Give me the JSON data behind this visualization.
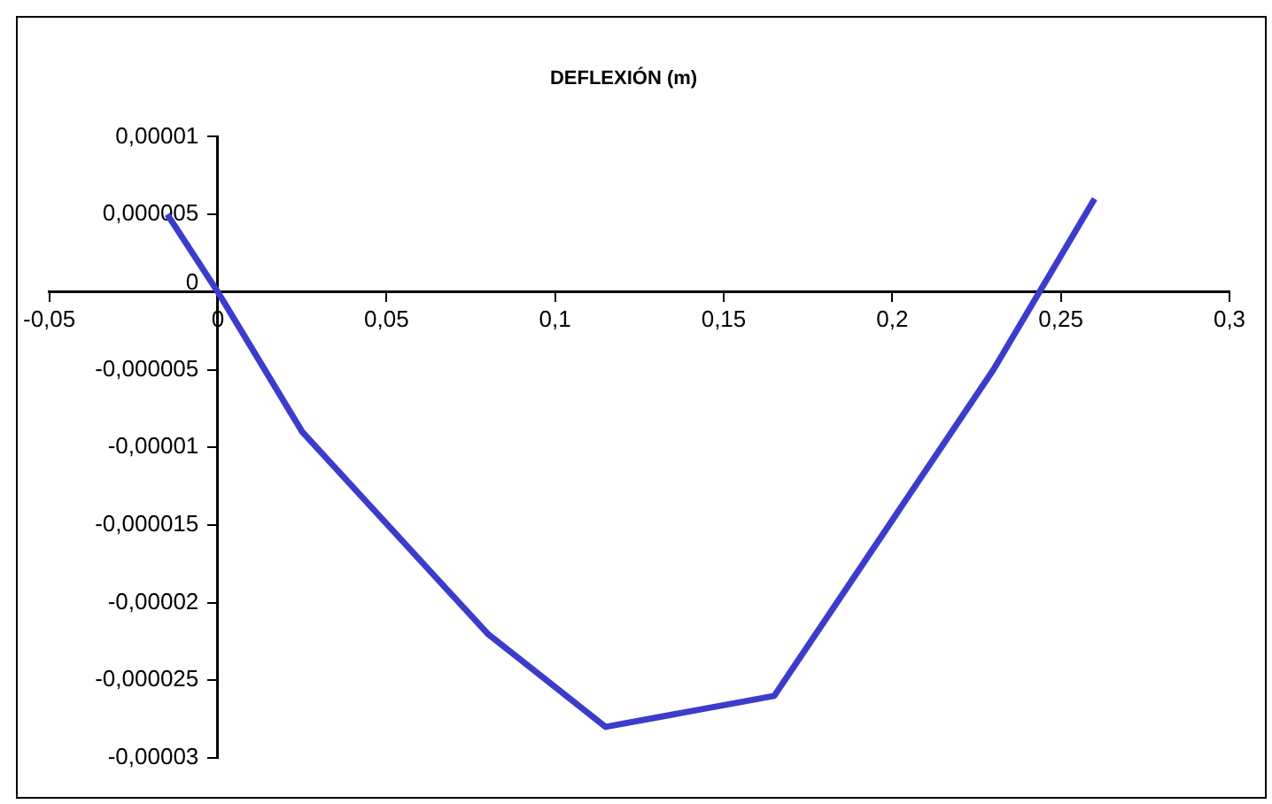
{
  "chart_data": {
    "type": "line",
    "title": "DEFLEXIÓN (m)",
    "x": [
      -0.015,
      0,
      0.025,
      0.08,
      0.115,
      0.165,
      0.23,
      0.26
    ],
    "series": [
      {
        "color": "#3c3ccc",
        "values": [
          5e-06,
          0,
          -9e-06,
          -2.2e-05,
          -2.8e-05,
          -2.6e-05,
          -5e-06,
          6e-06
        ]
      }
    ],
    "xlim": [
      -0.05,
      0.3
    ],
    "xticks": [
      {
        "value": -0.05,
        "label": "-0,05"
      },
      0,
      {
        "value": 0.05,
        "label": "0,05"
      },
      {
        "value": 0.1,
        "label": "0,1"
      },
      {
        "value": 0.15,
        "label": "0,15"
      },
      {
        "value": 0.2,
        "label": "0,2"
      },
      {
        "value": 0.25,
        "label": "0,25"
      },
      {
        "value": 0.3,
        "label": "0,3"
      }
    ],
    "ylim": [
      -3e-05,
      1e-05
    ],
    "yticks": [
      {
        "value": 1e-05,
        "label": "0,00001"
      },
      {
        "value": 5e-06,
        "label": "0,000005"
      },
      0,
      {
        "value": -5e-06,
        "label": "-0,000005"
      },
      {
        "value": -1e-05,
        "label": "-0,00001"
      },
      {
        "value": -1.5e-05,
        "label": "-0,000015"
      },
      {
        "value": -2e-05,
        "label": "-0,00002"
      },
      {
        "value": -2.5e-05,
        "label": "-0,000025"
      },
      {
        "value": -3e-05,
        "label": "-0,00003"
      }
    ],
    "grid": false,
    "legend": false,
    "marker": "none",
    "line_style": "solid"
  }
}
